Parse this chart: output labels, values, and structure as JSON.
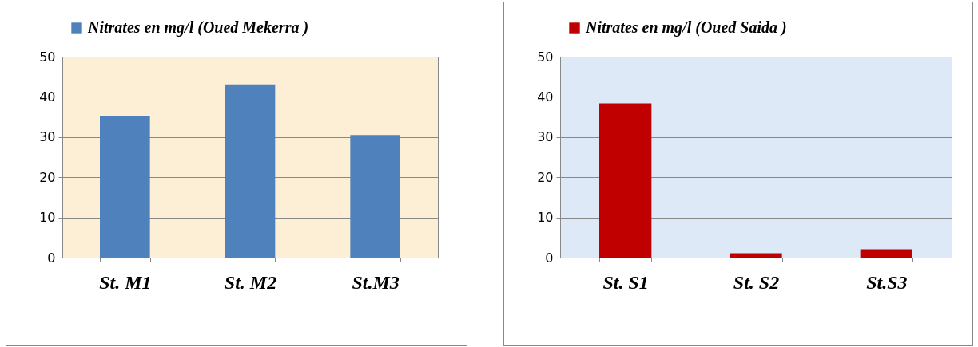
{
  "chart_data": [
    {
      "type": "bar",
      "categories": [
        "St. M1",
        "St. M2",
        "St.M3"
      ],
      "series": [
        {
          "name": "Nitrates en mg/l (Oued Mekerra )",
          "color": "#4f81bd",
          "values": [
            35.1,
            43.1,
            30.5
          ]
        }
      ],
      "ylim": [
        0,
        50
      ],
      "yticks": [
        0,
        10,
        20,
        30,
        40,
        50
      ],
      "grid": "y",
      "legend": "top"
    },
    {
      "type": "bar",
      "categories": [
        "St. S1",
        "St. S2",
        "St.S3"
      ],
      "series": [
        {
          "name": "Nitrates en mg/l (Oued Saida )",
          "color": "#c00000",
          "values": [
            38.4,
            1.1,
            2.1
          ]
        }
      ],
      "ylim": [
        0,
        50
      ],
      "yticks": [
        0,
        10,
        20,
        30,
        40,
        50
      ],
      "grid": "y",
      "legend": "top"
    }
  ]
}
